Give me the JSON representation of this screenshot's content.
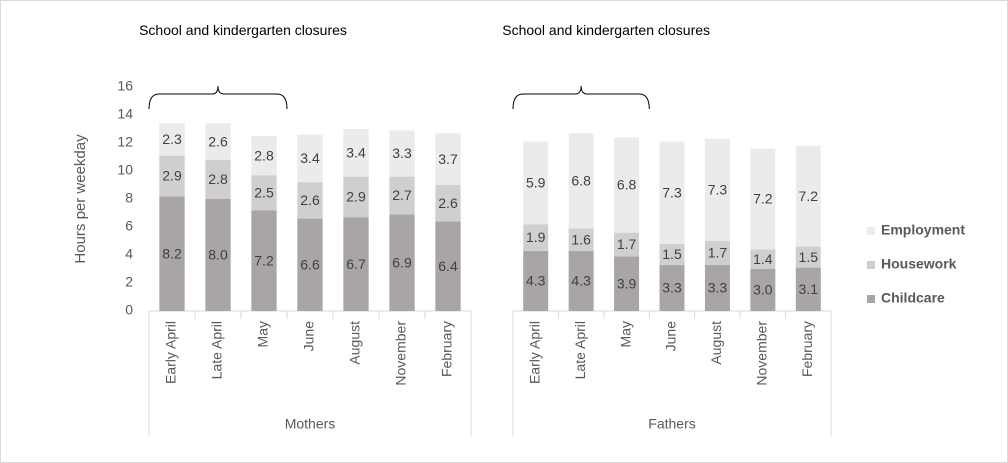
{
  "chart_data": [
    {
      "type": "bar",
      "stacked": true,
      "ylabel": "Hours per weekday",
      "xlabel": "Mothers",
      "annotation": "School and kindergarten closures",
      "categories": [
        "Early April",
        "Late April",
        "May",
        "June",
        "August",
        "November",
        "February"
      ],
      "series": [
        {
          "color": "#aaa5a5",
          "values": [
            8.2,
            8.0,
            7.2,
            6.6,
            6.7,
            6.9,
            6.4
          ],
          "value_labels": [
            "8.2",
            "8.0",
            "7.2",
            "6.6",
            "6.7",
            "6.9",
            "6.4"
          ]
        },
        {
          "color": "#cfcfcf",
          "values": [
            2.9,
            2.8,
            2.5,
            2.6,
            2.9,
            2.7,
            2.6
          ],
          "value_labels": [
            "2.9",
            "2.8",
            "2.5",
            "2.6",
            "2.9",
            "2.7",
            "2.6"
          ]
        },
        {
          "color": "#ebebeb",
          "values": [
            2.3,
            2.6,
            2.8,
            3.4,
            3.4,
            3.3,
            3.7
          ],
          "value_labels": [
            "2.3",
            "2.6",
            "2.8",
            "3.4",
            "3.4",
            "3.3",
            "3.7"
          ]
        }
      ],
      "ylim": [
        0,
        16
      ],
      "yticks": [
        0,
        2,
        4,
        6,
        8,
        10,
        12,
        14,
        16
      ]
    },
    {
      "type": "bar",
      "stacked": true,
      "xlabel": "Fathers",
      "annotation": "School and kindergarten closures",
      "categories": [
        "Early April",
        "Late April",
        "May",
        "June",
        "August",
        "November",
        "February"
      ],
      "series": [
        {
          "name": "Childcare",
          "color": "#aaa5a5",
          "values": [
            4.3,
            4.3,
            3.9,
            3.3,
            3.3,
            3.0,
            3.1
          ],
          "value_labels": [
            "4.3",
            "4.3",
            "3.9",
            "3.3",
            "3.3",
            "3.0",
            "3.1"
          ]
        },
        {
          "name": "Housework",
          "color": "#cfcfcf",
          "values": [
            1.9,
            1.6,
            1.7,
            1.5,
            1.7,
            1.4,
            1.5
          ],
          "value_labels": [
            "1.9",
            "1.6",
            "1.7",
            "1.5",
            "1.7",
            "1.4",
            "1.5"
          ]
        },
        {
          "name": "Employment",
          "color": "#ebebeb",
          "values": [
            5.9,
            6.8,
            6.8,
            7.3,
            7.3,
            7.2,
            7.2
          ],
          "value_labels": [
            "5.9",
            "6.8",
            "6.8",
            "7.3",
            "7.3",
            "7.2",
            "7.2"
          ]
        }
      ],
      "ylim": [
        0,
        16
      ],
      "legend": "right"
    }
  ]
}
